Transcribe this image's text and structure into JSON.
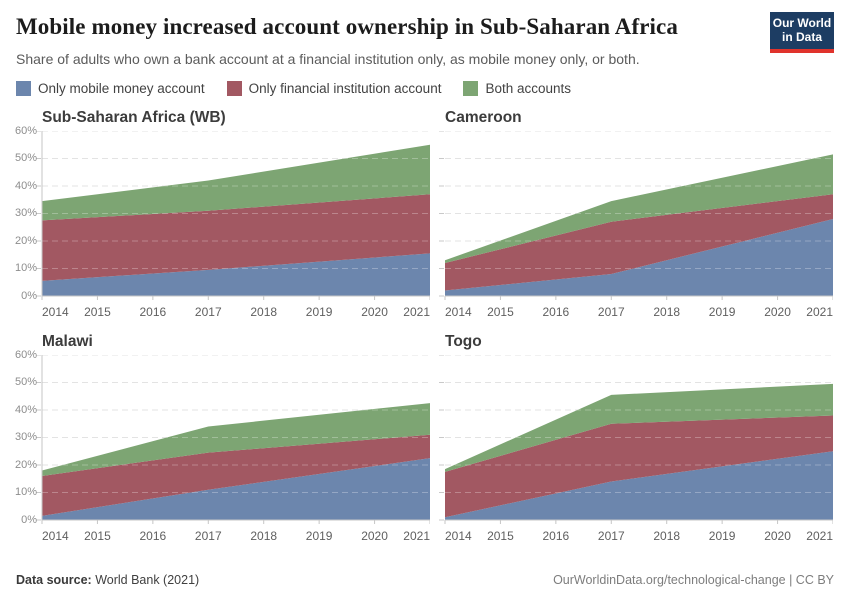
{
  "header": {
    "title": "Mobile money increased account ownership in Sub-Saharan Africa",
    "subtitle": "Share of adults who own a bank account at a financial institution only, as mobile money only, or both.",
    "logo": {
      "line1": "Our World",
      "line2": "in Data",
      "bg_color": "#1d3d63",
      "bar_color": "#e0332c"
    }
  },
  "legend": [
    {
      "label": "Only mobile money account",
      "color": "#6c86ad"
    },
    {
      "label": "Only financial institution account",
      "color": "#a25862"
    },
    {
      "label": "Both accounts",
      "color": "#7da573"
    }
  ],
  "chart_data": {
    "type": "area",
    "stacked": true,
    "x": [
      2014,
      2017,
      2021
    ],
    "x_ticks": [
      2014,
      2015,
      2016,
      2017,
      2018,
      2019,
      2020,
      2021
    ],
    "ylim": [
      0,
      60
    ],
    "y_ticks": [
      "0%",
      "10%",
      "20%",
      "30%",
      "40%",
      "50%",
      "60%"
    ],
    "grid": true,
    "legend_position": "top",
    "facets": [
      {
        "title": "Sub-Saharan Africa (WB)",
        "y_labels": true,
        "series": [
          {
            "name": "Only mobile money account",
            "values": [
              5.5,
              9.5,
              15.5
            ]
          },
          {
            "name": "Only financial institution account",
            "values": [
              22,
              21.5,
              21.5
            ]
          },
          {
            "name": "Both accounts",
            "values": [
              7,
              11,
              18
            ]
          }
        ]
      },
      {
        "title": "Cameroon",
        "y_labels": false,
        "series": [
          {
            "name": "Only mobile money account",
            "values": [
              2,
              8,
              28
            ]
          },
          {
            "name": "Only financial institution account",
            "values": [
              10,
              19,
              9
            ]
          },
          {
            "name": "Both accounts",
            "values": [
              1,
              7.5,
              14.5
            ]
          }
        ]
      },
      {
        "title": "Malawi",
        "y_labels": true,
        "series": [
          {
            "name": "Only mobile money account",
            "values": [
              1.5,
              11,
              22.5
            ]
          },
          {
            "name": "Only financial institution account",
            "values": [
              14.5,
              13.5,
              8.5
            ]
          },
          {
            "name": "Both accounts",
            "values": [
              2,
              9.5,
              11.5
            ]
          }
        ]
      },
      {
        "title": "Togo",
        "y_labels": false,
        "series": [
          {
            "name": "Only mobile money account",
            "values": [
              1,
              14,
              25
            ]
          },
          {
            "name": "Only financial institution account",
            "values": [
              16.5,
              21,
              13
            ]
          },
          {
            "name": "Both accounts",
            "values": [
              1,
              10.5,
              11.5
            ]
          }
        ]
      }
    ]
  },
  "footer": {
    "source_label": "Data source:",
    "source_value": " World Bank (2021)",
    "credit": "OurWorldinData.org/technological-change | CC BY"
  }
}
